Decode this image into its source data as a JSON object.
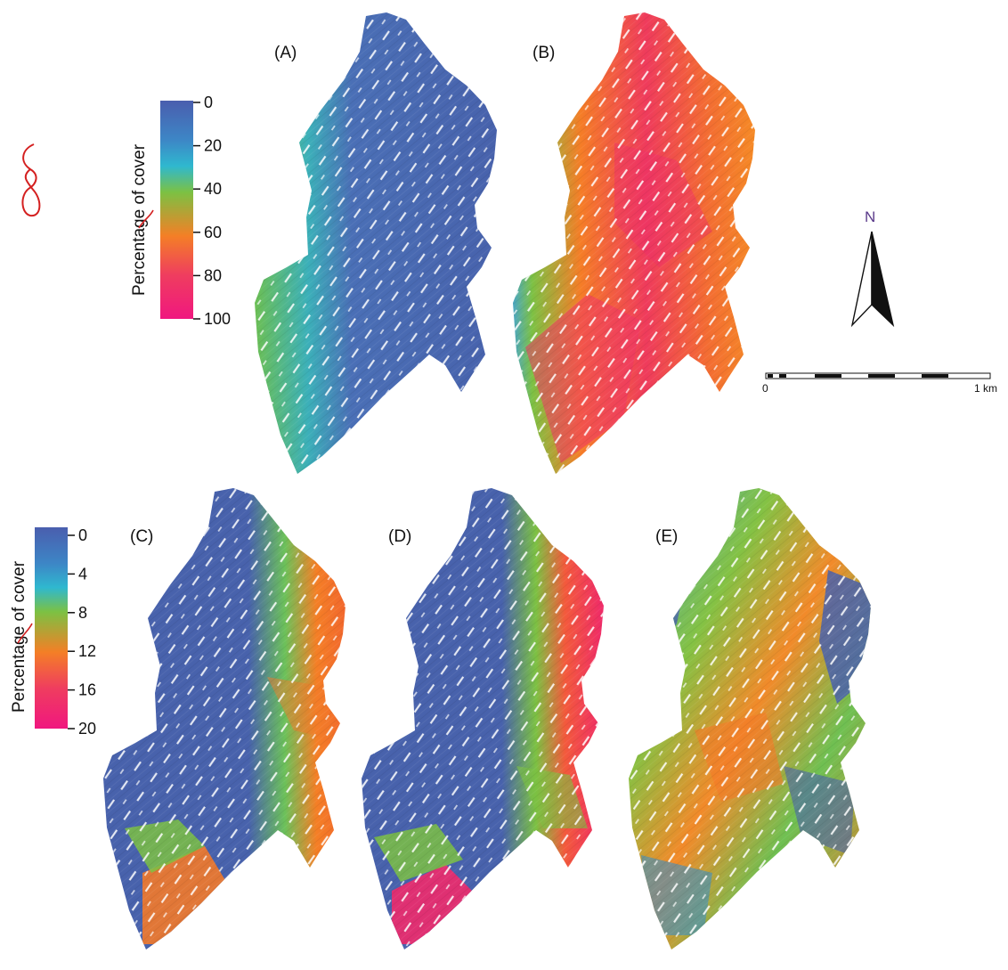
{
  "panels": [
    {
      "id": "A",
      "label": "(A)",
      "legend": 1,
      "level": 0.12
    },
    {
      "id": "B",
      "label": "(B)",
      "legend": 1,
      "level": 0.75
    },
    {
      "id": "C",
      "label": "(C)",
      "legend": 2,
      "level": 0.15
    },
    {
      "id": "D",
      "label": "(D)",
      "legend": 2,
      "level": 0.2
    },
    {
      "id": "E",
      "label": "(E)",
      "legend": 2,
      "level": 0.5
    }
  ],
  "legends": [
    {
      "title": "Percentage of cover",
      "ticks": [
        "0",
        "20",
        "40",
        "60",
        "80",
        "100"
      ]
    },
    {
      "title": "Percentage of cover",
      "ticks": [
        "0",
        "4",
        "8",
        "12",
        "16",
        "20"
      ]
    }
  ],
  "colors": {
    "ramp": [
      "#4a62ad",
      "#2fb2d0",
      "#79c243",
      "#f57f26",
      "#ee2a72",
      "#f2177f"
    ],
    "annotation": "#d42020"
  },
  "north_arrow": {
    "label": "N"
  },
  "scale_bar": {
    "start_label": "0",
    "end_label": "1 km"
  }
}
